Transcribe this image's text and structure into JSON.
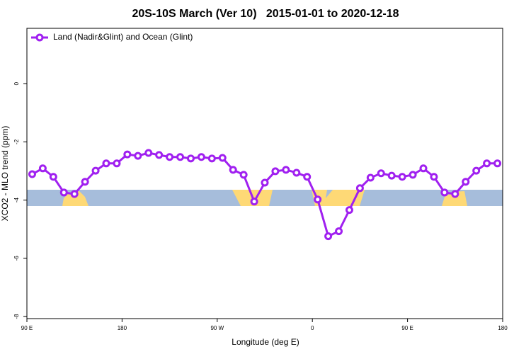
{
  "chart_data": {
    "type": "line",
    "title": "20S-10S March (Ver 10)   2015-01-01 to 2020-12-18",
    "x_label": "Longitude (deg E)",
    "y_label": "XCO2 - MLO trend (ppm)",
    "x": [
      95,
      105,
      115,
      125,
      135,
      145,
      155,
      165,
      175,
      185,
      195,
      205,
      215,
      225,
      235,
      245,
      255,
      265,
      275,
      285,
      295,
      305,
      315,
      325,
      335,
      345,
      355,
      365,
      375,
      385,
      395,
      405,
      415,
      425,
      435,
      445,
      455,
      465,
      475,
      485,
      495,
      505,
      515,
      525,
      535
    ],
    "series": [
      {
        "name": "Land (Nadir&Glint) and Ocean (Glint)",
        "color": "#a020f0",
        "values": [
          -3.11,
          -2.91,
          -3.2,
          -3.74,
          -3.79,
          -3.37,
          -2.99,
          -2.74,
          -2.74,
          -2.43,
          -2.48,
          -2.38,
          -2.45,
          -2.52,
          -2.52,
          -2.57,
          -2.52,
          -2.57,
          -2.55,
          -2.96,
          -3.13,
          -4.05,
          -3.4,
          -3.01,
          -2.96,
          -3.06,
          -3.2,
          -3.98,
          -5.24,
          -5.07,
          -4.34,
          -3.59,
          -3.23,
          -3.08,
          -3.16,
          -3.2,
          -3.13,
          -2.91,
          -3.2,
          -3.74,
          -3.79,
          -3.37,
          -2.99,
          -2.74,
          -2.74
        ]
      }
    ],
    "xlim": [
      90,
      540
    ],
    "xticks": [
      {
        "value": 90,
        "label": "90 E"
      },
      {
        "value": 180,
        "label": "180"
      },
      {
        "value": 270,
        "label": "90 W"
      },
      {
        "value": 360,
        "label": "0"
      },
      {
        "value": 450,
        "label": "90 E"
      },
      {
        "value": 540,
        "label": "180"
      }
    ],
    "ylim": [
      -8.07,
      1.9
    ],
    "yticks": [
      0,
      -2,
      -4,
      -6,
      -8
    ],
    "legend": "top-left"
  }
}
